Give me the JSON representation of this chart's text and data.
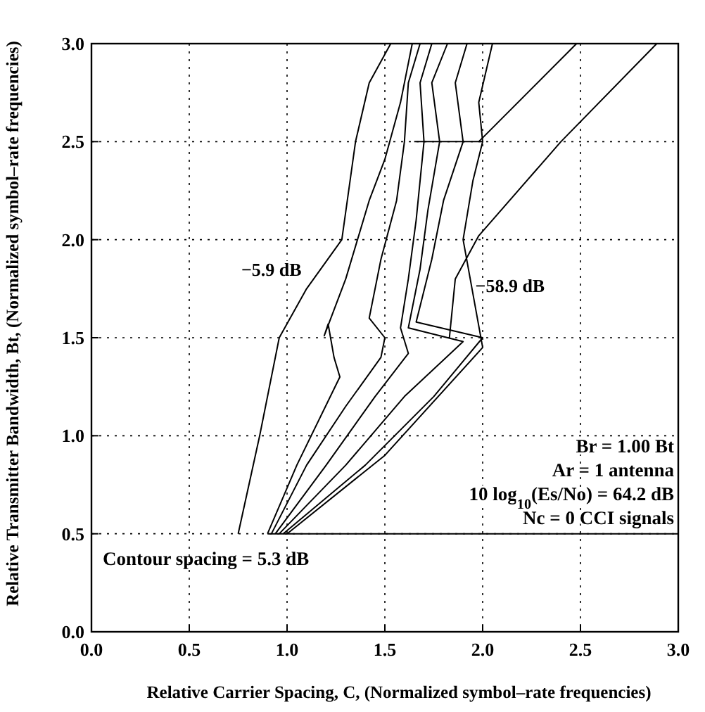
{
  "chart_data": {
    "type": "line",
    "xlabel": "Relative Carrier Spacing, C, (Normalized symbol–rate frequencies)",
    "ylabel": "Relative Transmitter Bandwidth, Bt, (Normalized symbol–rate frequencies)",
    "xlim": [
      0,
      3
    ],
    "ylim": [
      0,
      3
    ],
    "xticks": [
      {
        "value": 0,
        "label": "0.0"
      },
      {
        "value": 0.5,
        "label": "0.5"
      },
      {
        "value": 1,
        "label": "1.0"
      },
      {
        "value": 1.5,
        "label": "1.5"
      },
      {
        "value": 2,
        "label": "2.0"
      },
      {
        "value": 2.5,
        "label": "2.5"
      },
      {
        "value": 3,
        "label": "3.0"
      }
    ],
    "yticks": [
      {
        "value": 0,
        "label": "0.0"
      },
      {
        "value": 0.5,
        "label": "0.5"
      },
      {
        "value": 1,
        "label": "1.0"
      },
      {
        "value": 1.5,
        "label": "1.5"
      },
      {
        "value": 2,
        "label": "2.0"
      },
      {
        "value": 2.5,
        "label": "2.5"
      },
      {
        "value": 3,
        "label": "3.0"
      }
    ],
    "grid": true,
    "marker": "none",
    "line_style": "solid",
    "series": [
      {
        "color": "#000000",
        "x": [
          0.75,
          0.86,
          0.96,
          1.1,
          1.28,
          1.35,
          1.42,
          1.53
        ],
        "values": [
          0.5,
          1.0,
          1.5,
          1.75,
          2.0,
          2.5,
          2.8,
          3.0
        ]
      },
      {
        "color": "#000000",
        "x": [
          0.9,
          1.05,
          1.27,
          1.24,
          1.21,
          1.19,
          1.3,
          1.42,
          1.5,
          1.58,
          1.64
        ],
        "values": [
          0.5,
          0.85,
          1.3,
          1.4,
          1.57,
          1.51,
          1.8,
          2.2,
          2.41,
          2.7,
          3.0
        ]
      },
      {
        "color": "#000000",
        "x": [
          0.92,
          1.1,
          1.3,
          1.48,
          1.5,
          1.42,
          1.48,
          1.56,
          1.6,
          1.62,
          1.68
        ],
        "values": [
          0.5,
          0.85,
          1.15,
          1.4,
          1.5,
          1.6,
          1.9,
          2.2,
          2.5,
          2.8,
          3.0
        ]
      },
      {
        "color": "#000000",
        "x": [
          0.94,
          1.2,
          1.45,
          1.62,
          1.58,
          1.62,
          1.66,
          1.7,
          1.68,
          1.74
        ],
        "values": [
          0.5,
          0.85,
          1.2,
          1.42,
          1.55,
          1.8,
          2.1,
          2.5,
          2.8,
          3.0
        ]
      },
      {
        "color": "#000000",
        "x": [
          0.96,
          1.3,
          1.6,
          1.9,
          1.62,
          1.68,
          1.72,
          1.78,
          1.74,
          1.82
        ],
        "values": [
          0.5,
          0.85,
          1.2,
          1.48,
          1.55,
          1.85,
          2.15,
          2.5,
          2.8,
          3.0
        ]
      },
      {
        "color": "#000000",
        "x": [
          0.98,
          1.4,
          1.75,
          2.0,
          1.66,
          1.74,
          1.8,
          1.9,
          1.86,
          1.92
        ],
        "values": [
          0.5,
          0.85,
          1.2,
          1.5,
          1.58,
          1.9,
          2.2,
          2.5,
          2.8,
          3.0
        ]
      },
      {
        "color": "#000000",
        "x": [
          1.0,
          1.5,
          2.0,
          1.9,
          1.95,
          2.0,
          1.98,
          2.05
        ],
        "values": [
          0.5,
          0.9,
          1.45,
          2.0,
          2.3,
          2.5,
          2.7,
          3.0
        ]
      },
      {
        "color": "#000000",
        "x": [
          1.83,
          1.86,
          1.98,
          2.4,
          2.89
        ],
        "values": [
          1.5,
          1.8,
          2.02,
          2.5,
          3.0
        ]
      },
      {
        "color": "#000000",
        "x": [
          1.98,
          2.48
        ],
        "values": [
          2.5,
          3.0
        ]
      },
      {
        "color": "#000000",
        "x": [
          0.9,
          3.0
        ],
        "values": [
          0.5,
          0.5
        ]
      },
      {
        "color": "#000000",
        "x": [
          1.65,
          2.0
        ],
        "values": [
          2.5,
          2.5
        ]
      }
    ],
    "annotations": [
      "−5.9 dB",
      "−58.9 dB",
      "Br = 1.00 Bt",
      "Ar = 1 antenna",
      "10 log$_{10}$(Es/No) = 64.2 dB",
      "Nc = 0 CCI signals",
      "Contour spacing = 5.3 dB"
    ]
  }
}
